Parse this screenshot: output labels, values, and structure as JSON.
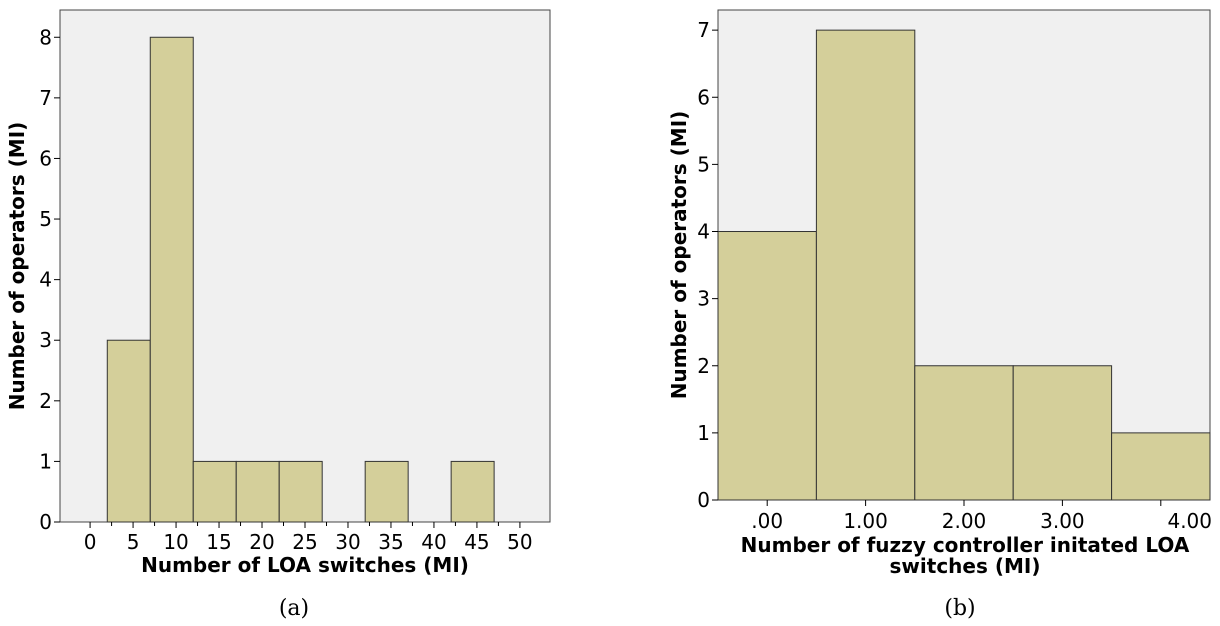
{
  "chart_data": [
    {
      "type": "bar",
      "panel": "a",
      "caption": "(a)",
      "xlabel": "Number of LOA switches (MI)",
      "ylabel": "Number of operators (MI)",
      "x_ticks": [
        "0",
        "5",
        "10",
        "15",
        "20",
        "25",
        "30",
        "35",
        "40",
        "45",
        "50"
      ],
      "y_ticks": [
        "0",
        "1",
        "2",
        "3",
        "4",
        "5",
        "6",
        "7",
        "8"
      ],
      "bins": [
        {
          "from": 2,
          "to": 7,
          "value": 3
        },
        {
          "from": 7,
          "to": 12,
          "value": 8
        },
        {
          "from": 12,
          "to": 17,
          "value": 1
        },
        {
          "from": 17,
          "to": 22,
          "value": 1
        },
        {
          "from": 22,
          "to": 27,
          "value": 1
        },
        {
          "from": 27,
          "to": 32,
          "value": 0
        },
        {
          "from": 32,
          "to": 37,
          "value": 1
        },
        {
          "from": 37,
          "to": 42,
          "value": 0
        },
        {
          "from": 42,
          "to": 47,
          "value": 1
        }
      ],
      "xlim": [
        -3.5,
        53.5
      ],
      "ylim": [
        0,
        8.45
      ],
      "grid": false,
      "bar_color": "#d4cf9a",
      "plot_bg": "#f0f0f0"
    },
    {
      "type": "bar",
      "panel": "b",
      "caption": "(b)",
      "xlabel": "Number of fuzzy controller initated LOA switches (MI)",
      "xlabel_lines": [
        "Number of fuzzy controller initated LOA",
        "switches (MI)"
      ],
      "ylabel": "Number of operators (MI)",
      "x_ticks": [
        ".00",
        "1.00",
        "2.00",
        "3.00",
        "4.00"
      ],
      "y_ticks": [
        "0",
        "1",
        "2",
        "3",
        "4",
        "5",
        "6",
        "7"
      ],
      "categories": [
        ".00",
        "1.00",
        "2.00",
        "3.00",
        "4.00"
      ],
      "values": [
        4,
        7,
        2,
        2,
        1
      ],
      "xlim": [
        -0.5,
        4.5
      ],
      "ylim": [
        0,
        7.3
      ],
      "grid": false,
      "bar_color": "#d4cf9a",
      "plot_bg": "#f0f0f0"
    }
  ]
}
